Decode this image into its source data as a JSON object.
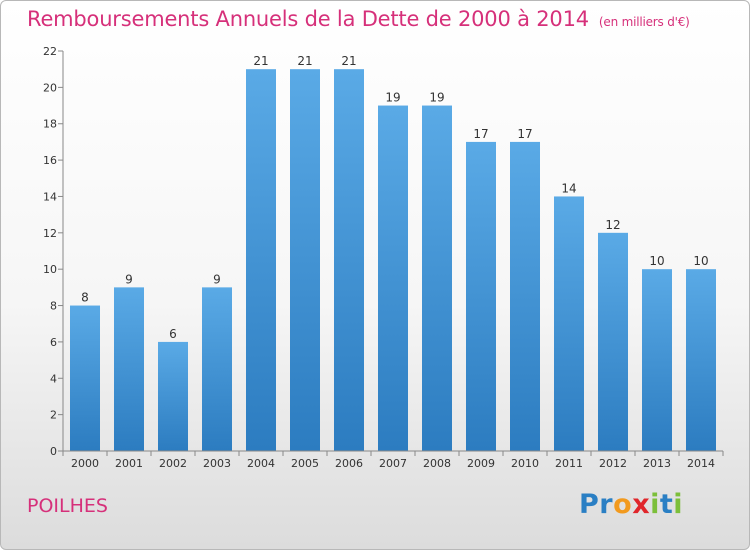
{
  "chart_data": {
    "type": "bar",
    "title": "Remboursements Annuels de la Dette de 2000 à 2014",
    "unit_note": "(en milliers d'€)",
    "categories": [
      "2000",
      "2001",
      "2002",
      "2003",
      "2004",
      "2005",
      "2006",
      "2007",
      "2008",
      "2009",
      "2010",
      "2011",
      "2012",
      "2013",
      "2014"
    ],
    "values": [
      8,
      9,
      6,
      9,
      21,
      21,
      21,
      19,
      19,
      17,
      17,
      14,
      12,
      10,
      10
    ],
    "ylim": [
      0,
      22
    ],
    "yticks": [
      0,
      2,
      4,
      6,
      8,
      10,
      12,
      14,
      16,
      18,
      20,
      22
    ],
    "xlabel": "",
    "ylabel": "",
    "grid": false,
    "bar_color": "#5aaae6",
    "bar_color_dark": "#2c7cc0"
  },
  "commune": "POILHES",
  "logo": {
    "letters": [
      {
        "ch": "P",
        "color": "#2a7fc4"
      },
      {
        "ch": "r",
        "color": "#2a7fc4"
      },
      {
        "ch": "o",
        "color": "#f29a1e"
      },
      {
        "ch": "x",
        "color": "#e0262b"
      },
      {
        "ch": "i",
        "color": "#7cbf3a"
      },
      {
        "ch": "t",
        "color": "#2a7fc4"
      },
      {
        "ch": "i",
        "color": "#7cbf3a"
      }
    ]
  },
  "colors": {
    "accent": "#d6307a"
  }
}
